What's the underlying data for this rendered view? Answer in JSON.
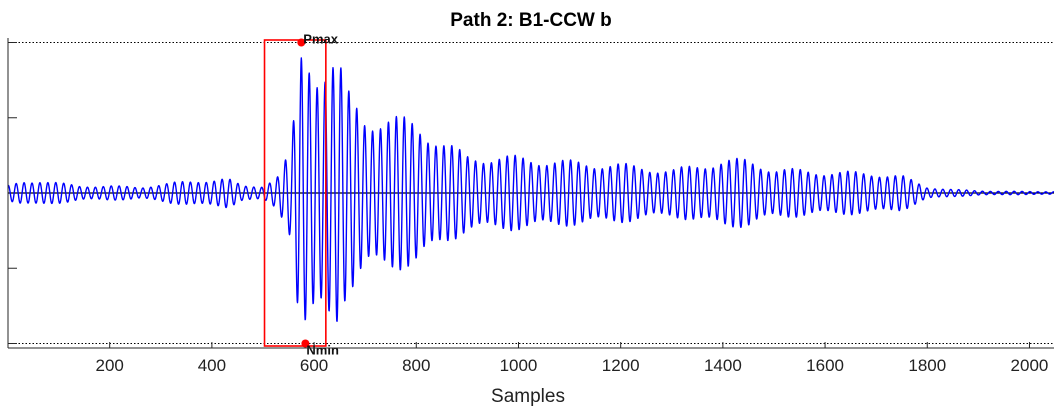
{
  "chart_data": {
    "type": "line",
    "title": "Path 2: B1-CCW b",
    "xlabel": "Samples",
    "ylabel": "",
    "xlim": [
      1,
      2048
    ],
    "ylim": [
      -1.03,
      1.03
    ],
    "xticks": [
      200,
      400,
      600,
      800,
      1000,
      1200,
      1400,
      1600,
      1800,
      2000
    ],
    "y_tick_values": [
      -1.0,
      -0.5,
      0.5,
      1.0
    ],
    "reference_lines": {
      "pmax_level": 1.0,
      "nmin_level": -1.0,
      "zero_level": 0
    },
    "series": [
      {
        "color": "#0000ff",
        "envelope": {
          "x": [
            1,
            30,
            60,
            100,
            140,
            200,
            260,
            320,
            380,
            430,
            460,
            500,
            530,
            555,
            565,
            575,
            590,
            610,
            635,
            650,
            660,
            700,
            750,
            800,
            850,
            900,
            1000,
            1100,
            1200,
            1300,
            1400,
            1450,
            1500,
            1600,
            1700,
            1750,
            1800,
            1850,
            1900,
            2000,
            2048
          ],
          "amp": [
            0.05,
            0.08,
            0.09,
            0.07,
            0.05,
            0.05,
            0.04,
            0.07,
            0.09,
            0.1,
            0.05,
            0.05,
            0.12,
            0.3,
            0.7,
            1.0,
            1.0,
            0.9,
            0.92,
            0.88,
            0.72,
            0.55,
            0.52,
            0.5,
            0.36,
            0.26,
            0.25,
            0.22,
            0.2,
            0.16,
            0.23,
            0.23,
            0.17,
            0.15,
            0.14,
            0.12,
            0.04,
            0.025,
            0.015,
            0.01,
            0.01
          ]
        }
      }
    ],
    "markers": [
      {
        "label": "Pmax",
        "x": 575,
        "y": 1.0,
        "color": "#ff0000"
      },
      {
        "label": "Nmin",
        "x": 583,
        "y": -1.0,
        "color": "#ff0000"
      }
    ],
    "selection_window": {
      "x_start": 503,
      "x_end": 623,
      "color": "#ff0000"
    },
    "grid": false,
    "legend": "none"
  }
}
